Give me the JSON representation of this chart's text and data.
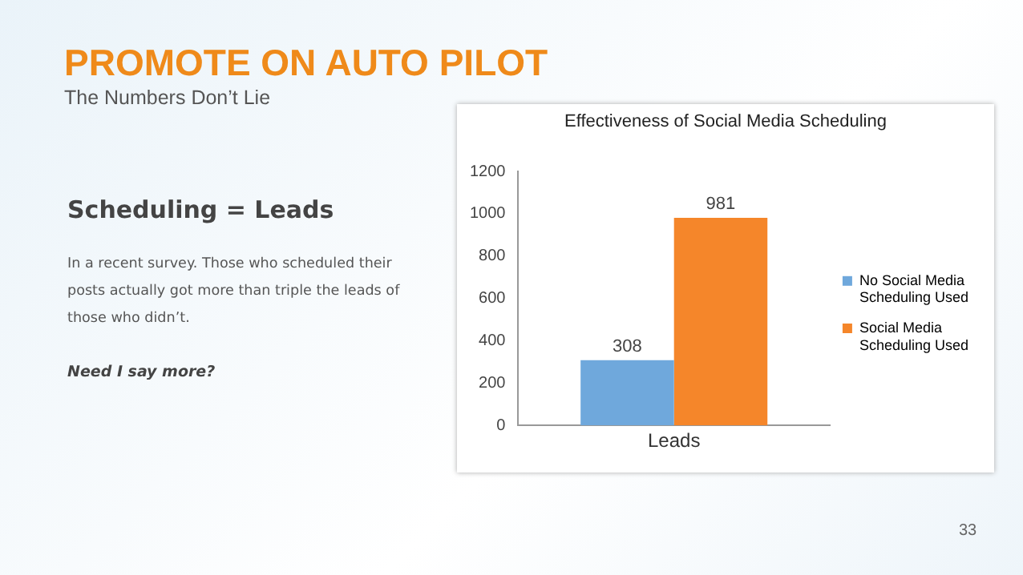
{
  "chart_data": {
    "type": "bar",
    "title": "PROMOTE ON AUTO PILOT",
    "subtitle": "The Numbers Don’t Lie",
    "annotations": [
      "Effectiveness of Social Media Scheduling",
      "Scheduling = Leads",
      "In a recent survey. Those who scheduled their posts actually got more than triple the leads of those who didn’t.",
      "Need I say more?",
      "33"
    ],
    "categories": [
      "Leads"
    ],
    "series": [
      {
        "name": "No Social Media Scheduling Used",
        "color": "#6fa8dc",
        "values": [
          308
        ]
      },
      {
        "name": "Social Media Scheduling Used",
        "color": "#f5862a",
        "values": [
          981
        ]
      }
    ],
    "ylim": [
      0,
      1200
    ],
    "yticks": [
      0,
      200,
      400,
      600,
      800,
      1000,
      1200
    ],
    "data_labels": true,
    "legend": "right"
  }
}
